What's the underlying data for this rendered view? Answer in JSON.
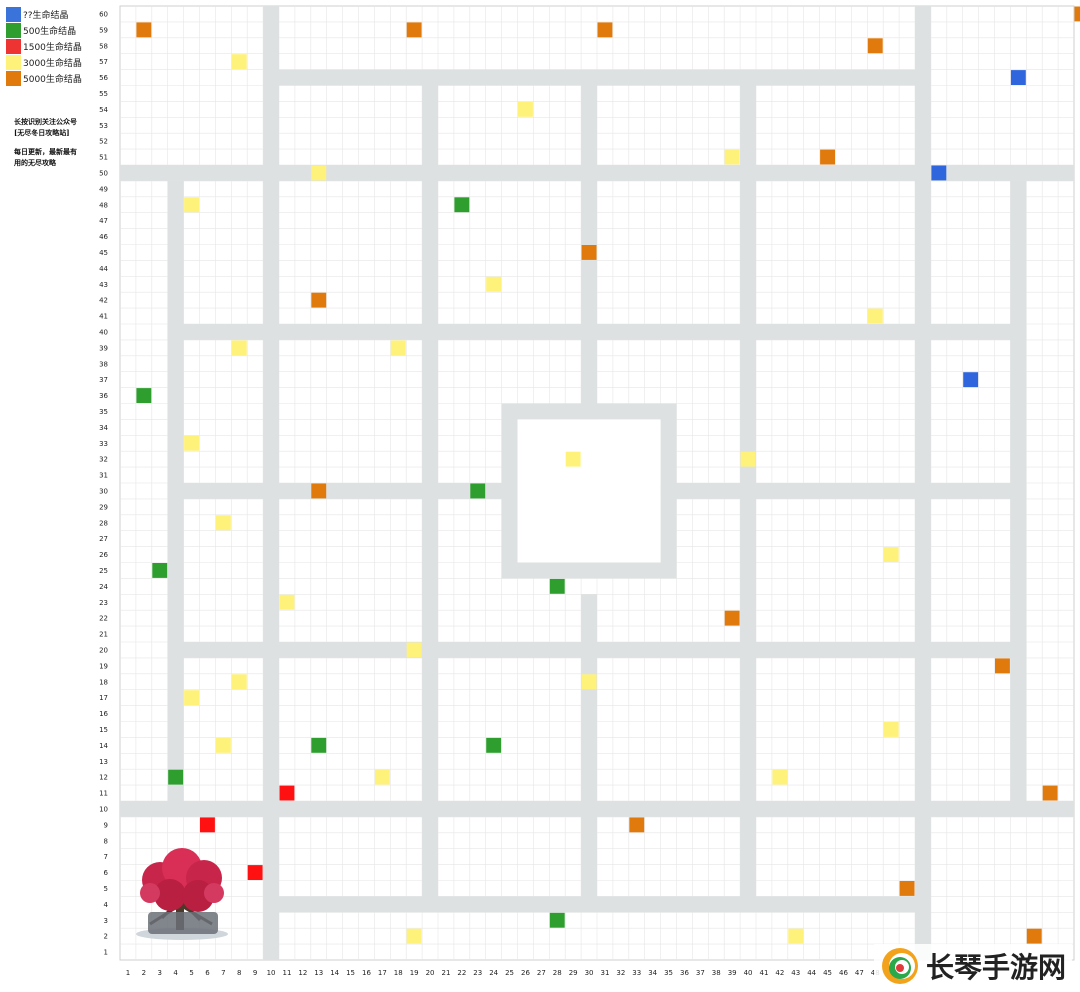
{
  "legend": [
    {
      "label": "??生命结晶",
      "color": "#3a73d9"
    },
    {
      "label": "500生命结晶",
      "color": "#2e9e2e"
    },
    {
      "label": "1500生命结晶",
      "color": "#ee3333"
    },
    {
      "label": "3000生命结晶",
      "color": "#fff27a"
    },
    {
      "label": "5000生命结晶",
      "color": "#e07a0c"
    }
  ],
  "notes": {
    "line1": "长按识别关注公众号",
    "line2": "[无尽冬日攻略站]",
    "line3": "每日更新，最新最有",
    "line4": "用的无尽攻略"
  },
  "watermark": {
    "text": "长琴手游网"
  },
  "colors": {
    "road": "#dde1e1",
    "grid": "#e6e6e6",
    "blue": "#2f66dd",
    "green": "#2e9e2e",
    "red": "#ff1111",
    "yellow": "#fff27a",
    "orange": "#e07a0c"
  },
  "chart_data": {
    "type": "heatmap",
    "x_ticks": [
      1,
      2,
      3,
      4,
      5,
      6,
      7,
      8,
      9,
      10,
      11,
      12,
      13,
      14,
      15,
      16,
      17,
      18,
      19,
      20,
      21,
      22,
      23,
      24,
      25,
      26,
      27,
      28,
      29,
      30,
      31,
      32,
      33,
      34,
      35,
      36,
      37,
      38,
      39,
      40,
      41,
      42,
      43,
      44,
      45,
      46,
      47,
      48
    ],
    "y_ticks": [
      1,
      2,
      3,
      4,
      5,
      6,
      7,
      8,
      9,
      10,
      11,
      12,
      13,
      14,
      15,
      16,
      17,
      18,
      19,
      20,
      21,
      22,
      23,
      24,
      25,
      26,
      27,
      28,
      29,
      30,
      31,
      32,
      33,
      34,
      35,
      36,
      37,
      38,
      39,
      40,
      41,
      42,
      43,
      44,
      45,
      46,
      47,
      48,
      49,
      50,
      51,
      52,
      53,
      54,
      55,
      56,
      57,
      58,
      59,
      60
    ],
    "cells": [
      {
        "x": 2,
        "y": 59,
        "type": "orange"
      },
      {
        "x": 19,
        "y": 59,
        "type": "orange"
      },
      {
        "x": 31,
        "y": 59,
        "type": "orange"
      },
      {
        "x": 48,
        "y": 58,
        "type": "orange"
      },
      {
        "x": 61,
        "y": 60,
        "type": "orange"
      },
      {
        "x": 8,
        "y": 57,
        "type": "yellow"
      },
      {
        "x": 57,
        "y": 56,
        "type": "blue"
      },
      {
        "x": 26,
        "y": 54,
        "type": "yellow"
      },
      {
        "x": 39,
        "y": 51,
        "type": "yellow"
      },
      {
        "x": 45,
        "y": 51,
        "type": "orange"
      },
      {
        "x": 13,
        "y": 50,
        "type": "yellow"
      },
      {
        "x": 52,
        "y": 50,
        "type": "blue"
      },
      {
        "x": 5,
        "y": 48,
        "type": "yellow"
      },
      {
        "x": 22,
        "y": 48,
        "type": "green"
      },
      {
        "x": 30,
        "y": 45,
        "type": "orange"
      },
      {
        "x": 24,
        "y": 43,
        "type": "yellow"
      },
      {
        "x": 13,
        "y": 42,
        "type": "orange"
      },
      {
        "x": 48,
        "y": 41,
        "type": "yellow"
      },
      {
        "x": 8,
        "y": 39,
        "type": "yellow"
      },
      {
        "x": 18,
        "y": 39,
        "type": "yellow"
      },
      {
        "x": 54,
        "y": 37,
        "type": "blue"
      },
      {
        "x": 2,
        "y": 36,
        "type": "green"
      },
      {
        "x": 5,
        "y": 33,
        "type": "yellow"
      },
      {
        "x": 29,
        "y": 32,
        "type": "yellow"
      },
      {
        "x": 40,
        "y": 32,
        "type": "yellow"
      },
      {
        "x": 13,
        "y": 30,
        "type": "orange"
      },
      {
        "x": 23,
        "y": 30,
        "type": "green"
      },
      {
        "x": 7,
        "y": 28,
        "type": "yellow"
      },
      {
        "x": 49,
        "y": 26,
        "type": "yellow"
      },
      {
        "x": 3,
        "y": 25,
        "type": "green"
      },
      {
        "x": 28,
        "y": 24,
        "type": "green"
      },
      {
        "x": 11,
        "y": 23,
        "type": "yellow"
      },
      {
        "x": 39,
        "y": 22,
        "type": "orange"
      },
      {
        "x": 19,
        "y": 20,
        "type": "yellow"
      },
      {
        "x": 56,
        "y": 19,
        "type": "orange"
      },
      {
        "x": 8,
        "y": 18,
        "type": "yellow"
      },
      {
        "x": 30,
        "y": 18,
        "type": "yellow"
      },
      {
        "x": 5,
        "y": 17,
        "type": "yellow"
      },
      {
        "x": 49,
        "y": 15,
        "type": "yellow"
      },
      {
        "x": 7,
        "y": 14,
        "type": "yellow"
      },
      {
        "x": 13,
        "y": 14,
        "type": "green"
      },
      {
        "x": 24,
        "y": 14,
        "type": "green"
      },
      {
        "x": 4,
        "y": 12,
        "type": "green"
      },
      {
        "x": 17,
        "y": 12,
        "type": "yellow"
      },
      {
        "x": 42,
        "y": 12,
        "type": "yellow"
      },
      {
        "x": 11,
        "y": 11,
        "type": "red"
      },
      {
        "x": 59,
        "y": 11,
        "type": "orange"
      },
      {
        "x": 6,
        "y": 9,
        "type": "red"
      },
      {
        "x": 33,
        "y": 9,
        "type": "orange"
      },
      {
        "x": 9,
        "y": 6,
        "type": "red"
      },
      {
        "x": 50,
        "y": 5,
        "type": "orange"
      },
      {
        "x": 28,
        "y": 3,
        "type": "green"
      },
      {
        "x": 19,
        "y": 2,
        "type": "yellow"
      },
      {
        "x": 43,
        "y": 2,
        "type": "yellow"
      },
      {
        "x": 58,
        "y": 2,
        "type": "orange"
      }
    ]
  }
}
